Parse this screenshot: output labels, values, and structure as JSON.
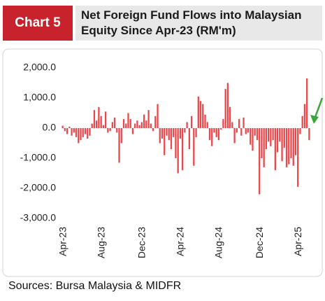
{
  "chart_data": {
    "type": "bar",
    "tag": "Chart 5",
    "title": "Net Foreign Fund Flows into Malaysian Equity Since Apr-23 (RM'm)",
    "source": "Sources: Bursa Malaysia & MIDFR",
    "color": "#e8474b",
    "ylim": [
      -3000,
      2000
    ],
    "yticks": [
      {
        "value": 2000,
        "label": "2,000.0"
      },
      {
        "value": 1000,
        "label": "1,000.0"
      },
      {
        "value": 0,
        "label": "0.0"
      },
      {
        "value": -1000,
        "label": "-1,000.0"
      },
      {
        "value": -2000,
        "label": "-2,000.0"
      },
      {
        "value": -3000,
        "label": "-3,000.0"
      }
    ],
    "categories": [
      "Apr-23",
      null,
      null,
      null,
      null,
      null,
      null,
      null,
      null,
      null,
      null,
      null,
      null,
      null,
      null,
      null,
      null,
      "Aug-23",
      null,
      null,
      null,
      null,
      null,
      null,
      null,
      null,
      null,
      null,
      null,
      null,
      null,
      null,
      null,
      null,
      null,
      "Dec-23",
      null,
      null,
      null,
      null,
      null,
      null,
      null,
      null,
      null,
      null,
      null,
      null,
      null,
      null,
      null,
      null,
      "Apr-24",
      null,
      null,
      null,
      null,
      null,
      null,
      null,
      null,
      null,
      null,
      null,
      null,
      null,
      null,
      null,
      null,
      "Aug-24",
      null,
      null,
      null,
      null,
      null,
      null,
      null,
      null,
      null,
      null,
      null,
      null,
      null,
      null,
      null,
      null,
      null,
      "Dec-24",
      null,
      null,
      null,
      null,
      null,
      null,
      null,
      null,
      null,
      null,
      null,
      null,
      null,
      null,
      null,
      null,
      "Apr-25",
      null,
      null,
      null,
      null,
      null
    ],
    "values": [
      80,
      -100,
      -200,
      50,
      -250,
      -150,
      -300,
      -500,
      -400,
      -300,
      -200,
      -350,
      -250,
      150,
      600,
      250,
      700,
      400,
      100,
      550,
      -150,
      -100,
      200,
      350,
      -150,
      -1150,
      -500,
      300,
      150,
      500,
      300,
      -200,
      150,
      250,
      100,
      200,
      450,
      250,
      600,
      150,
      -100,
      400,
      800,
      -500,
      -350,
      -900,
      -250,
      -400,
      -700,
      -300,
      -1000,
      -1500,
      -350,
      -1400,
      -150,
      200,
      -700,
      400,
      -1250,
      -300,
      1050,
      900,
      800,
      450,
      200,
      -400,
      -600,
      -150,
      -300,
      -400,
      -50,
      300,
      1300,
      1500,
      700,
      200,
      -500,
      -150,
      300,
      -250,
      350,
      -200,
      -150,
      -550,
      -750,
      -250,
      -400,
      -2200,
      -1000,
      -1300,
      -700,
      -450,
      -600,
      -400,
      -1400,
      -800,
      -450,
      -1100,
      -650,
      -1300,
      -1200,
      -1000,
      -1250,
      -900,
      -1950,
      -200,
      400,
      800,
      1650,
      -400
    ]
  }
}
